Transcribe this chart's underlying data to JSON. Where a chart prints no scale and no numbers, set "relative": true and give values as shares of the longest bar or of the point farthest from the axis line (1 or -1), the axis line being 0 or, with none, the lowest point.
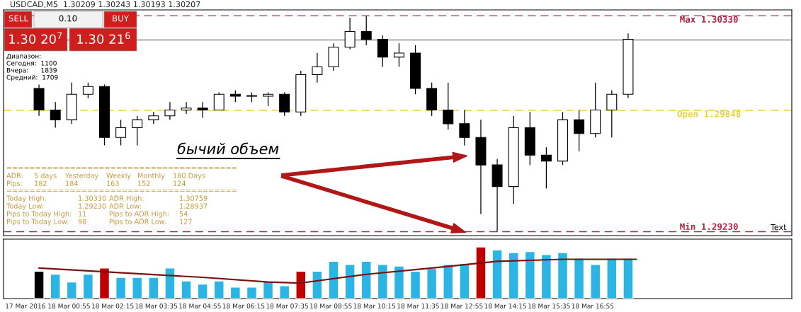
{
  "chart_data": [
    {
      "type": "candlestick",
      "title": "USDCAD,M5  1.30209 1.30243 1.30193 1.30207",
      "x": [
        "2016-03-18T00:00",
        "2016-03-18T00:30",
        "2016-03-18T01:00",
        "2016-03-18T01:30",
        "2016-03-18T02:00",
        "2016-03-18T02:30",
        "2016-03-18T03:00",
        "2016-03-18T03:30",
        "2016-03-18T04:00",
        "2016-03-18T04:30",
        "2016-03-18T05:00",
        "2016-03-18T05:30",
        "2016-03-18T06:00",
        "2016-03-18T06:30",
        "2016-03-18T07:00",
        "2016-03-18T07:30",
        "2016-03-18T08:00",
        "2016-03-18T08:30",
        "2016-03-18T09:00",
        "2016-03-18T09:30",
        "2016-03-18T10:00",
        "2016-03-18T10:30",
        "2016-03-18T11:00",
        "2016-03-18T11:30",
        "2016-03-18T12:00",
        "2016-03-18T12:30",
        "2016-03-18T13:00",
        "2016-03-18T13:30",
        "2016-03-18T14:00",
        "2016-03-18T14:30",
        "2016-03-18T15:00",
        "2016-03-18T15:30",
        "2016-03-18T16:00",
        "2016-03-18T16:30",
        "2016-03-18T17:00",
        "2016-03-18T17:30",
        "2016-03-18T18:00"
      ],
      "ohlc": [
        [
          1.2996,
          1.2998,
          1.2982,
          1.2985
        ],
        [
          1.2985,
          1.2989,
          1.2976,
          1.298
        ],
        [
          1.298,
          1.2999,
          1.2978,
          1.2993
        ],
        [
          1.2993,
          1.2999,
          1.2991,
          1.2997
        ],
        [
          1.2997,
          1.2998,
          1.2967,
          1.2971
        ],
        [
          1.2971,
          1.298,
          1.2967,
          1.2976
        ],
        [
          1.2976,
          1.2982,
          1.2967,
          1.298
        ],
        [
          1.298,
          1.2984,
          1.2978,
          1.2982
        ],
        [
          1.2982,
          1.2989,
          1.298,
          1.2985
        ],
        [
          1.2985,
          1.2989,
          1.2983,
          1.2986
        ],
        [
          1.2986,
          1.2989,
          1.2981,
          1.2985
        ],
        [
          1.2985,
          1.2994,
          1.2985,
          1.2993
        ],
        [
          1.2993,
          1.2995,
          1.2989,
          1.2992
        ],
        [
          1.2992,
          1.2994,
          1.2989,
          1.2992
        ],
        [
          1.2992,
          1.2994,
          1.2987,
          1.2993
        ],
        [
          1.2993,
          1.2994,
          1.2982,
          1.2984
        ],
        [
          1.2984,
          1.3005,
          1.2982,
          1.3003
        ],
        [
          1.3003,
          1.3014,
          1.2999,
          1.3007
        ],
        [
          1.3007,
          1.3019,
          1.3005,
          1.3017
        ],
        [
          1.3017,
          1.3032,
          1.3016,
          1.3025
        ],
        [
          1.3025,
          1.3033,
          1.3018,
          1.3021
        ],
        [
          1.3021,
          1.3023,
          1.3007,
          1.3012
        ],
        [
          1.3012,
          1.3019,
          1.3007,
          1.3014
        ],
        [
          1.3014,
          1.3018,
          1.2993,
          1.2996
        ],
        [
          1.2996,
          1.2999,
          1.2982,
          1.2985
        ],
        [
          1.2985,
          1.2999,
          1.2975,
          1.2978
        ],
        [
          1.2978,
          1.2985,
          1.2967,
          1.2971
        ],
        [
          1.2971,
          1.298,
          1.2932,
          1.2957
        ],
        [
          1.2957,
          1.296,
          1.2923,
          1.2946
        ],
        [
          1.2946,
          1.2982,
          1.2937,
          1.2976
        ],
        [
          1.2976,
          1.2984,
          1.2957,
          1.2962
        ],
        [
          1.2962,
          1.2966,
          1.2945,
          1.2959
        ],
        [
          1.2959,
          1.2984,
          1.2957,
          1.298
        ],
        [
          1.298,
          1.2985,
          1.2964,
          1.2973
        ],
        [
          1.2973,
          1.2999,
          1.2971,
          1.2985
        ],
        [
          1.2985,
          1.2995,
          1.2971,
          1.2993
        ],
        [
          1.2993,
          1.3024,
          1.2991,
          1.3021
        ]
      ],
      "xlim": [
        "2016-03-17T22:55",
        "2016-03-18T23:00"
      ],
      "ylim": [
        1.2921,
        1.3036
      ],
      "tick_labels": false,
      "grid": false,
      "ref_lines": [
        {
          "axis": "y",
          "value": 1.3033,
          "label": "Max 1.30330",
          "color": "#b22245",
          "line_style": "dashed"
        },
        {
          "axis": "y",
          "value": 1.29848,
          "label": "Open 1.29848",
          "color": "#e8d23c",
          "line_style": "dashed"
        },
        {
          "axis": "y",
          "value": 1.2923,
          "label": "Min 1.29230",
          "color": "#b22245",
          "line_style": "dashed"
        },
        {
          "axis": "y",
          "value": 1.30207,
          "color": "#8c8c8c",
          "line_style": "solid"
        }
      ],
      "annotations": [
        "SELL",
        "0.10",
        "BUY",
        "1.30 20$^{7}$",
        "1.30 21$^{6}$",
        "Диапазон:",
        "Сегодня:  1100",
        "Вчера:      1839",
        "Средний:  1709",
        "бычий объем",
        "========================================",
        "ADR:",
        "5 days",
        "Yesterday",
        "Weekly",
        "Monthly",
        "180 Days",
        "Pips:",
        "182",
        "184",
        "163",
        "152",
        "124",
        "========================================",
        "Today High:",
        "1.30330",
        "ADR High:",
        "1.30759",
        "Today Low:",
        "1.29230",
        "ADR Low:",
        "1.28937",
        "Pips to Today High:",
        "11",
        "Pips to ADR High:",
        "54",
        "Pips to Today Low:",
        "98",
        "Pips to ADR Low:",
        "127",
        "Text"
      ]
    },
    {
      "type": "bar",
      "relative": true,
      "tick_labels": "x",
      "grid": false,
      "xlim": [
        "2016-03-17T22:55",
        "2016-03-18T23:00"
      ],
      "xticks": [
        {
          "value": "2016-03-17T23:35",
          "label": "17 Mar 2016"
        },
        {
          "value": "2016-03-18T00:55",
          "label": "18 Mar 00:55"
        },
        {
          "value": "2016-03-18T02:15",
          "label": "18 Mar 02:15"
        },
        {
          "value": "2016-03-18T03:35",
          "label": "18 Mar 03:35"
        },
        {
          "value": "2016-03-18T04:55",
          "label": "18 Mar 04:55"
        },
        {
          "value": "2016-03-18T06:15",
          "label": "18 Mar 06:15"
        },
        {
          "value": "2016-03-18T07:35",
          "label": "18 Mar 07:35"
        },
        {
          "value": "2016-03-18T08:55",
          "label": "18 Mar 08:55"
        },
        {
          "value": "2016-03-18T10:15",
          "label": "18 Mar 10:15"
        },
        {
          "value": "2016-03-18T11:35",
          "label": "18 Mar 11:35"
        },
        {
          "value": "2016-03-18T12:55",
          "label": "18 Mar 12:55"
        },
        {
          "value": "2016-03-18T14:15",
          "label": "18 Mar 14:15"
        },
        {
          "value": "2016-03-18T15:35",
          "label": "18 Mar 15:35"
        },
        {
          "value": "2016-03-18T16:55",
          "label": "18 Mar 16:55"
        }
      ],
      "series": [
        {
          "type": "bar",
          "x": [
            "2016-03-18T00:00",
            "2016-03-18T00:30",
            "2016-03-18T01:00",
            "2016-03-18T01:30",
            "2016-03-18T02:00",
            "2016-03-18T02:30",
            "2016-03-18T03:00",
            "2016-03-18T03:30",
            "2016-03-18T04:00",
            "2016-03-18T04:30",
            "2016-03-18T05:00",
            "2016-03-18T05:30",
            "2016-03-18T06:00",
            "2016-03-18T06:30",
            "2016-03-18T07:00",
            "2016-03-18T07:30",
            "2016-03-18T08:00",
            "2016-03-18T08:30",
            "2016-03-18T09:00",
            "2016-03-18T09:30",
            "2016-03-18T10:00",
            "2016-03-18T10:30",
            "2016-03-18T11:00",
            "2016-03-18T11:30",
            "2016-03-18T12:00",
            "2016-03-18T12:30",
            "2016-03-18T13:00",
            "2016-03-18T13:30",
            "2016-03-18T14:00",
            "2016-03-18T14:30",
            "2016-03-18T15:00",
            "2016-03-18T15:30",
            "2016-03-18T16:00",
            "2016-03-18T16:30",
            "2016-03-18T17:00",
            "2016-03-18T17:30",
            "2016-03-18T18:00"
          ],
          "values": [
            0.53,
            0.47,
            0.32,
            0.47,
            0.59,
            0.41,
            0.41,
            0.41,
            0.59,
            0.34,
            0.28,
            0.34,
            0.22,
            0.22,
            0.34,
            0.25,
            0.53,
            0.53,
            0.72,
            0.66,
            0.72,
            0.66,
            0.63,
            0.53,
            0.58,
            0.66,
            0.68,
            1,
            0.94,
            0.89,
            0.91,
            0.85,
            0.89,
            0.78,
            0.66,
            0.78,
            0.78
          ],
          "colors": [
            "#000000",
            "#2bb5e5",
            "#2bb5e5",
            "#2bb5e5",
            "#c00000",
            "#2bb5e5",
            "#2bb5e5",
            "#2bb5e5",
            "#2bb5e5",
            "#2bb5e5",
            "#2bb5e5",
            "#2bb5e5",
            "#2bb5e5",
            "#2bb5e5",
            "#2bb5e5",
            "#2bb5e5",
            "#c00000",
            "#2bb5e5",
            "#2bb5e5",
            "#2bb5e5",
            "#2bb5e5",
            "#2bb5e5",
            "#2bb5e5",
            "#2bb5e5",
            "#2bb5e5",
            "#2bb5e5",
            "#2bb5e5",
            "#c00000",
            "#2bb5e5",
            "#2bb5e5",
            "#2bb5e5",
            "#2bb5e5",
            "#2bb5e5",
            "#2bb5e5",
            "#2bb5e5",
            "#2bb5e5",
            "#2bb5e5"
          ]
        },
        {
          "type": "line",
          "x": [
            "2016-03-18T00:00",
            "2016-03-18T05:00",
            "2016-03-18T07:00",
            "2016-03-18T08:00",
            "2016-03-18T10:00",
            "2016-03-18T12:00",
            "2016-03-18T14:00",
            "2016-03-18T16:00",
            "2016-03-18T18:15"
          ],
          "values": [
            0.59,
            0.41,
            0.32,
            0.3,
            0.47,
            0.59,
            0.72,
            0.76,
            0.76
          ],
          "color": "#7b1010"
        }
      ]
    }
  ]
}
